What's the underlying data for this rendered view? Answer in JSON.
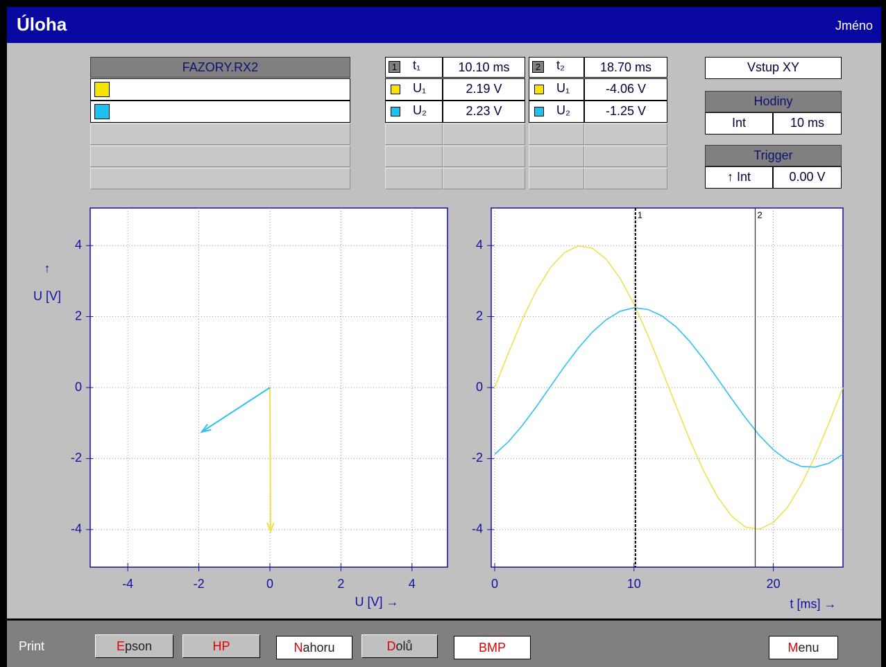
{
  "header": {
    "title": "Úloha",
    "name": "Jméno"
  },
  "file_table": {
    "title": "FAZORY.RX2",
    "rows": [
      {
        "color": "#f5e400"
      },
      {
        "color": "#1ec0f0"
      }
    ]
  },
  "cursor_tables": [
    {
      "index": "1",
      "time_label": "t₁",
      "time": "10.10 ms",
      "rows": [
        {
          "color": "#f5e400",
          "label": "U₁",
          "value": "2.19 V"
        },
        {
          "color": "#1ec0f0",
          "label": "U₂",
          "value": "2.23 V"
        }
      ]
    },
    {
      "index": "2",
      "time_label": "t₂",
      "time": "18.70 ms",
      "rows": [
        {
          "color": "#f5e400",
          "label": "U₁",
          "value": "-4.06 V"
        },
        {
          "color": "#1ec0f0",
          "label": "U₂",
          "value": "-1.25 V"
        }
      ]
    }
  ],
  "input": "Vstup XY",
  "clock": {
    "title": "Hodiny",
    "source": "Int",
    "value": "10 ms"
  },
  "trigger": {
    "title": "Trigger",
    "source": "↑ Int",
    "value": "0.00 V"
  },
  "footer": {
    "label": "Print",
    "buttons": [
      "Epson",
      "HP",
      "Nahoru",
      "Dolů",
      "BMP",
      "Menu"
    ]
  },
  "chart_data": [
    {
      "type": "vector",
      "xlabel": "U [V] →",
      "ylabel": "U [V]",
      "ylabel_arrow": "↑",
      "xlim": [
        -5,
        5
      ],
      "ylim": [
        -5,
        5
      ],
      "xticks": [
        -4,
        -2,
        0,
        2,
        4
      ],
      "yticks": [
        -4,
        -2,
        0,
        2,
        4
      ],
      "grid": true,
      "series": [
        {
          "color": "#f0e050",
          "x": [
            0,
            0.02
          ],
          "y": [
            0,
            -4.06
          ]
        },
        {
          "color": "#30c0f0",
          "x": [
            0,
            -1.92
          ],
          "y": [
            0,
            -1.25
          ]
        }
      ]
    },
    {
      "type": "line",
      "xlabel": "t [ms] →",
      "xlim": [
        0,
        25
      ],
      "ylim": [
        -5,
        5
      ],
      "xticks": [
        0,
        10,
        20
      ],
      "yticks": [
        -4,
        -2,
        0,
        2,
        4
      ],
      "grid": true,
      "x": [
        0,
        1,
        2,
        3,
        4,
        5,
        6,
        7,
        8,
        9,
        10,
        11,
        12,
        13,
        14,
        15,
        16,
        17,
        18,
        19,
        20,
        21,
        22,
        23,
        24,
        25
      ],
      "series": [
        {
          "color": "#f0e050",
          "values": [
            0,
            0.99,
            1.93,
            2.74,
            3.38,
            3.8,
            3.99,
            3.93,
            3.62,
            3.08,
            2.35,
            1.47,
            0.5,
            -0.5,
            -1.47,
            -2.35,
            -3.08,
            -3.62,
            -3.93,
            -3.99,
            -3.8,
            -3.38,
            -2.74,
            -1.93,
            -0.99,
            0
          ]
        },
        {
          "color": "#30c0f0",
          "values": [
            -1.88,
            -1.52,
            -1.06,
            -0.53,
            0.03,
            0.59,
            1.11,
            1.56,
            1.91,
            2.15,
            2.25,
            2.2,
            2.02,
            1.72,
            1.3,
            0.8,
            0.25,
            -0.31,
            -0.85,
            -1.35,
            -1.75,
            -2.05,
            -2.22,
            -2.24,
            -2.13,
            -1.88
          ]
        }
      ],
      "cursors": [
        {
          "label": "1",
          "x": 10.1,
          "style": "dashed"
        },
        {
          "label": "2",
          "x": 18.7,
          "style": "solid"
        }
      ]
    }
  ]
}
